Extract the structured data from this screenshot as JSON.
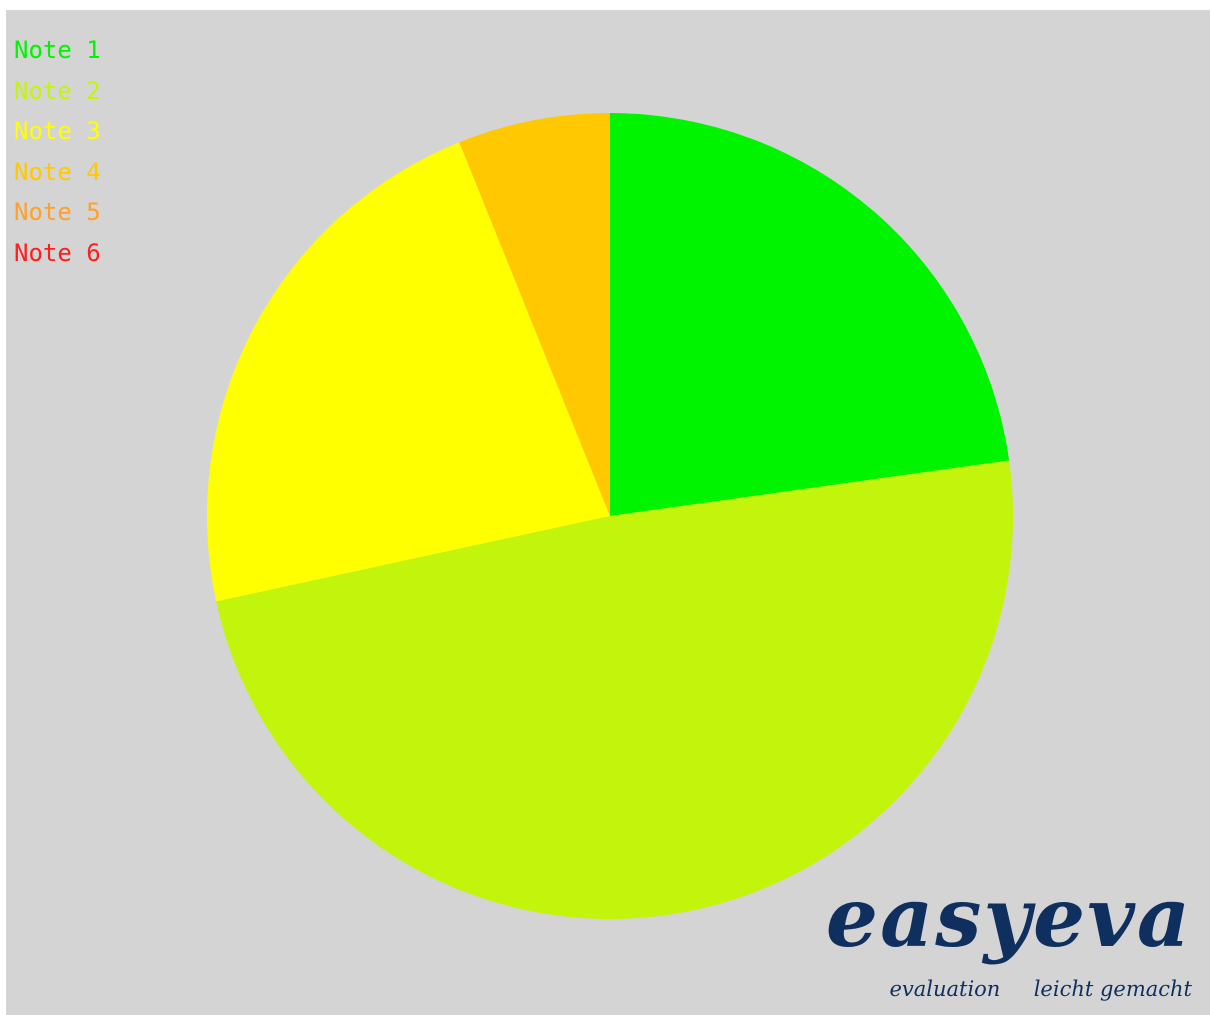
{
  "chart_data": {
    "type": "pie",
    "start": "top",
    "direction": "clockwise",
    "legend_placement": "top-left",
    "series": [
      {
        "name": "Note 1",
        "value": 22.8,
        "color": "#00f400"
      },
      {
        "name": "Note 2",
        "value": 48.8,
        "color": "#c2f40c"
      },
      {
        "name": "Note 3",
        "value": 22.3,
        "color": "#ffff00"
      },
      {
        "name": "Note 4",
        "value": 6.1,
        "color": "#ffc800"
      },
      {
        "name": "Note 5",
        "value": 0,
        "color": "#ffa028"
      },
      {
        "name": "Note 6",
        "value": 0,
        "color": "#ff1e1e"
      }
    ]
  },
  "logo": {
    "name": "easyeva",
    "tagline": "evaluation     leicht gemacht"
  }
}
